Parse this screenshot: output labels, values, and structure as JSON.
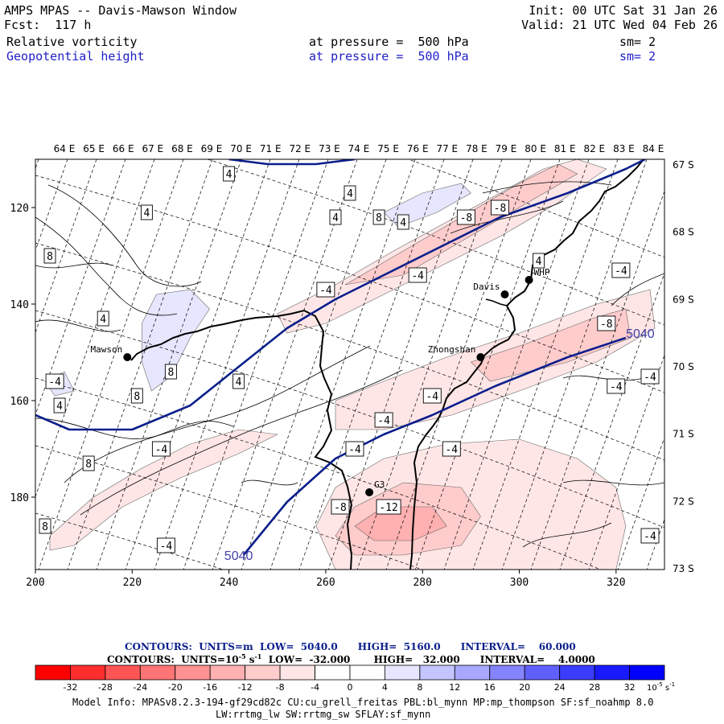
{
  "header": {
    "title": "AMPS MPAS -- Davis-Mawson Window",
    "fcst": "Fcst:  117 h",
    "init": "Init: 00 UTC Sat 31 Jan 26",
    "valid": "Valid: 21 UTC Wed 04 Feb 26",
    "field1_name": "Relative vorticity",
    "field1_level": "at pressure =  500 hPa",
    "field1_sm": "sm= 2",
    "field2_name": "Geopotential height",
    "field2_level": "at pressure =  500 hPa",
    "field2_sm": "sm= 2"
  },
  "colors": {
    "height_contour": "#0a1e8c",
    "coast": "#000000",
    "blue_text": "#1e1ec8"
  },
  "chart_data": {
    "type": "contour-map",
    "x_range": [
      200,
      330
    ],
    "y_range": [
      110,
      195
    ],
    "x_ticks": [
      200,
      220,
      240,
      260,
      280,
      300,
      320
    ],
    "y_ticks": [
      120,
      140,
      160,
      180
    ],
    "lon_labels": [
      "64 E",
      "65 E",
      "66 E",
      "67 E",
      "68 E",
      "69 E",
      "70 E",
      "71 E",
      "72 E",
      "73 E",
      "74 E",
      "75 E",
      "76 E",
      "77 E",
      "78 E",
      "79 E",
      "80 E",
      "81 E",
      "82 E",
      "83 E",
      "84 E"
    ],
    "lat_labels": [
      "67 S",
      "68 S",
      "69 S",
      "70 S",
      "71 S",
      "72 S",
      "73 S"
    ],
    "stations": [
      {
        "name": "Mawson",
        "x": 219,
        "y": 151
      },
      {
        "name": "Davis",
        "x": 297,
        "y": 138
      },
      {
        "name": "WHP",
        "x": 302,
        "y": 135
      },
      {
        "name": "Zhongshan",
        "x": 292,
        "y": 151
      },
      {
        "name": "G3",
        "x": 269,
        "y": 179
      }
    ],
    "height_labels": [
      {
        "text": "5040",
        "x": 325,
        "y": 146
      },
      {
        "text": "5040",
        "x": 242,
        "y": 192
      }
    ],
    "height_contours": [
      {
        "value": 5040,
        "points": [
          [
            243,
            192
          ],
          [
            252,
            181
          ],
          [
            262,
            172
          ],
          [
            272,
            167
          ],
          [
            282,
            163
          ],
          [
            295,
            157
          ],
          [
            310,
            151
          ],
          [
            322,
            147
          ]
        ]
      },
      {
        "value": 5100,
        "points": [
          [
            200,
            163
          ],
          [
            207,
            166
          ],
          [
            220,
            166
          ],
          [
            232,
            161
          ],
          [
            242,
            153
          ],
          [
            252,
            145
          ],
          [
            262,
            139
          ],
          [
            272,
            134
          ],
          [
            284,
            128
          ],
          [
            296,
            122
          ],
          [
            310,
            117
          ],
          [
            322,
            112
          ],
          [
            326,
            110
          ]
        ]
      },
      {
        "value": 5160,
        "points": [
          [
            240,
            110
          ],
          [
            248,
            111
          ],
          [
            258,
            111
          ],
          [
            266,
            110
          ]
        ]
      }
    ],
    "vorticity_labels": [
      {
        "text": "4",
        "x": 240,
        "y": 113
      },
      {
        "text": "4",
        "x": 265,
        "y": 117
      },
      {
        "text": "4",
        "x": 262,
        "y": 122
      },
      {
        "text": "4",
        "x": 223,
        "y": 121
      },
      {
        "text": "8",
        "x": 271,
        "y": 122
      },
      {
        "text": "4",
        "x": 276,
        "y": 123
      },
      {
        "text": "-8",
        "x": 289,
        "y": 122
      },
      {
        "text": "-8",
        "x": 296,
        "y": 120
      },
      {
        "text": "8",
        "x": 203,
        "y": 130
      },
      {
        "text": "4",
        "x": 304,
        "y": 131
      },
      {
        "text": "-4",
        "x": 321,
        "y": 133
      },
      {
        "text": "-4",
        "x": 279,
        "y": 134
      },
      {
        "text": "-4",
        "x": 260,
        "y": 137
      },
      {
        "text": "4",
        "x": 214,
        "y": 143
      },
      {
        "text": "-8",
        "x": 318,
        "y": 144
      },
      {
        "text": "8",
        "x": 228,
        "y": 154
      },
      {
        "text": "4",
        "x": 242,
        "y": 156
      },
      {
        "text": "-4",
        "x": 327,
        "y": 155
      },
      {
        "text": "-4",
        "x": 320,
        "y": 157
      },
      {
        "text": "-4",
        "x": 204,
        "y": 156
      },
      {
        "text": "4",
        "x": 205,
        "y": 161
      },
      {
        "text": "8",
        "x": 221,
        "y": 159
      },
      {
        "text": "-4",
        "x": 282,
        "y": 159
      },
      {
        "text": "-4",
        "x": 272,
        "y": 164
      },
      {
        "text": "-4",
        "x": 226,
        "y": 170
      },
      {
        "text": "-4",
        "x": 266,
        "y": 170
      },
      {
        "text": "-4",
        "x": 286,
        "y": 170
      },
      {
        "text": "8",
        "x": 211,
        "y": 173
      },
      {
        "text": "-8",
        "x": 263,
        "y": 182
      },
      {
        "text": "-12",
        "x": 273,
        "y": 182
      },
      {
        "text": "8",
        "x": 202,
        "y": 186
      },
      {
        "text": "-4",
        "x": 227,
        "y": 190
      },
      {
        "text": "-4",
        "x": 327,
        "y": 188
      }
    ],
    "vorticity_patches": [
      {
        "value": -4,
        "points": [
          [
            262,
            195
          ],
          [
            258,
            186
          ],
          [
            262,
            178
          ],
          [
            272,
            172
          ],
          [
            285,
            169
          ],
          [
            300,
            168
          ],
          [
            312,
            172
          ],
          [
            320,
            178
          ],
          [
            322,
            186
          ],
          [
            320,
            195
          ]
        ]
      },
      {
        "value": -8,
        "points": [
          [
            262,
            188
          ],
          [
            266,
            182
          ],
          [
            276,
            177
          ],
          [
            288,
            178
          ],
          [
            292,
            184
          ],
          [
            288,
            190
          ],
          [
            276,
            192
          ],
          [
            266,
            192
          ]
        ]
      },
      {
        "value": -12,
        "points": [
          [
            266,
            186
          ],
          [
            272,
            182
          ],
          [
            282,
            182
          ],
          [
            285,
            186
          ],
          [
            278,
            189
          ],
          [
            270,
            189
          ]
        ]
      },
      {
        "value": -4,
        "points": [
          [
            262,
            160
          ],
          [
            272,
            156
          ],
          [
            285,
            151
          ],
          [
            300,
            146
          ],
          [
            316,
            140
          ],
          [
            327,
            137
          ],
          [
            328,
            145
          ],
          [
            316,
            152
          ],
          [
            300,
            158
          ],
          [
            286,
            163
          ],
          [
            272,
            166
          ],
          [
            262,
            166
          ]
        ]
      },
      {
        "value": -8,
        "points": [
          [
            290,
            152
          ],
          [
            302,
            148
          ],
          [
            315,
            143
          ],
          [
            322,
            141
          ],
          [
            323,
            147
          ],
          [
            310,
            152
          ],
          [
            294,
            156
          ]
        ]
      },
      {
        "value": -4,
        "points": [
          [
            250,
            142
          ],
          [
            262,
            136
          ],
          [
            274,
            129
          ],
          [
            285,
            123
          ],
          [
            296,
            117
          ],
          [
            305,
            112
          ],
          [
            312,
            110
          ],
          [
            318,
            112
          ],
          [
            308,
            119
          ],
          [
            296,
            126
          ],
          [
            284,
            132
          ],
          [
            272,
            138
          ],
          [
            260,
            144
          ],
          [
            252,
            146
          ]
        ]
      },
      {
        "value": -8,
        "points": [
          [
            264,
            136
          ],
          [
            276,
            129
          ],
          [
            288,
            122
          ],
          [
            300,
            115
          ],
          [
            308,
            111
          ],
          [
            312,
            113
          ],
          [
            300,
            120
          ],
          [
            288,
            127
          ],
          [
            276,
            134
          ]
        ]
      },
      {
        "value": -4,
        "points": [
          [
            203,
            188
          ],
          [
            212,
            180
          ],
          [
            222,
            174
          ],
          [
            232,
            169
          ],
          [
            242,
            166
          ],
          [
            250,
            167
          ],
          [
            242,
            171
          ],
          [
            230,
            176
          ],
          [
            218,
            182
          ],
          [
            208,
            190
          ],
          [
            203,
            191
          ]
        ]
      },
      {
        "value": 4,
        "points": [
          [
            272,
            121
          ],
          [
            280,
            117
          ],
          [
            288,
            115
          ],
          [
            290,
            117
          ],
          [
            283,
            121
          ],
          [
            275,
            124
          ]
        ]
      },
      {
        "value": 4,
        "points": [
          [
            222,
            144
          ],
          [
            225,
            138
          ],
          [
            232,
            137
          ],
          [
            236,
            141
          ],
          [
            232,
            147
          ],
          [
            228,
            155
          ],
          [
            224,
            158
          ],
          [
            222,
            152
          ]
        ]
      },
      {
        "value": 4,
        "points": [
          [
            202,
            156
          ],
          [
            206,
            154
          ],
          [
            208,
            158
          ],
          [
            204,
            159
          ]
        ]
      }
    ],
    "colorbar": {
      "ticks": [
        "-32",
        "-28",
        "-24",
        "-20",
        "-16",
        "-12",
        "-8",
        "-4",
        "0",
        "4",
        "8",
        "12",
        "16",
        "20",
        "24",
        "28",
        "32"
      ],
      "unit": "10",
      "unit_exp": "-5",
      "unit_suffix": " s",
      "unit_suffix_exp": "-1",
      "colors": [
        "#ff0000",
        "#ff2e2e",
        "#ff5555",
        "#ff7474",
        "#ff9292",
        "#ffb0b0",
        "#ffcccc",
        "#ffe6e6",
        "#ffffff",
        "#ffffff",
        "#e6e6ff",
        "#c4c4ff",
        "#a8a8ff",
        "#8484ff",
        "#6060ff",
        "#3c3cff",
        "#0000ff"
      ]
    },
    "contours_note": {
      "line1_a": "CONTOURS:  UNITS=m  LOW=  5040.0      HIGH=  5160.0      INTERVAL=    60.000",
      "line2_a": "CONTOURS:  UNITS=10",
      "line2_sup1": "-5",
      "line2_b": " s",
      "line2_sup2": "-1",
      "line2_c": "  LOW=  -32.000       HIGH=   32.000      INTERVAL=    4.0000"
    }
  },
  "model_info": {
    "line1": "Model Info: MPASv8.2.3-194-gf29cd82c CU:cu_grell_freitas PBL:bl_mynn MP:mp_thompson SF:sf_noahmp 8.0",
    "line2": "LW:rrtmg_lw SW:rrtmg_sw SFLAY:sf_mynn"
  }
}
